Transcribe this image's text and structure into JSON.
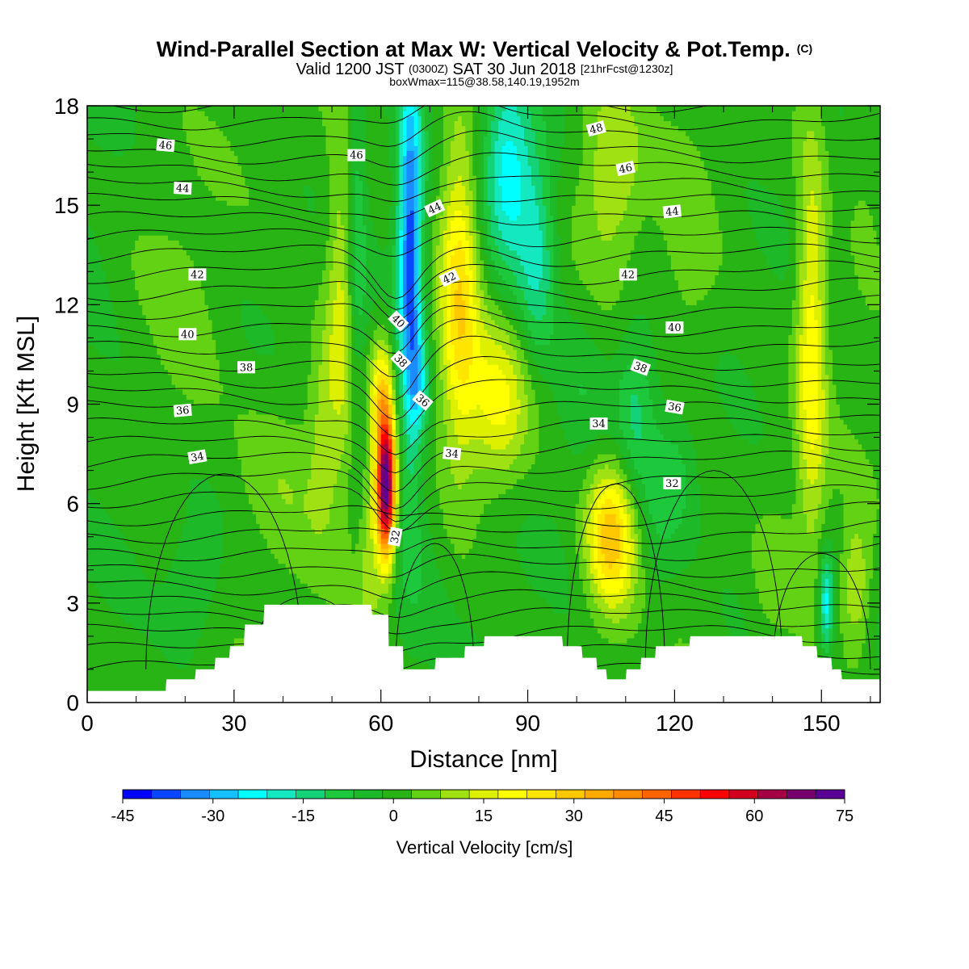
{
  "header": {
    "title_main": "Wind-Parallel Section at Max W: Vertical Velocity & Pot.Temp.",
    "title_mark": "(C)",
    "valid_line_a": "Valid 1200 JST",
    "valid_line_b": "(0300Z)",
    "valid_line_c": "SAT 30 Jun 2018",
    "valid_line_d": "[21hrFcst@1230z]",
    "box_line": "boxWmax=115@38.58,140.19,1952m"
  },
  "chart_data": {
    "type": "heatmap",
    "title": "Wind-Parallel Section at Max W: Vertical Velocity & Pot.Temp.",
    "xlabel": "Distance [nm]",
    "ylabel": "Height [Kft MSL]",
    "xlim": [
      0,
      162
    ],
    "ylim": [
      0,
      18
    ],
    "x_ticks": [
      0,
      30,
      60,
      90,
      120,
      150
    ],
    "x_tick_labels": [
      "0",
      "30",
      "60",
      "90",
      "120",
      "150"
    ],
    "y_ticks": [
      0,
      3,
      6,
      9,
      12,
      15,
      18
    ],
    "y_tick_labels": [
      "0",
      "3",
      "6",
      "9",
      "12",
      "15",
      "18"
    ],
    "colorbar": {
      "title": "Vertical Velocity [cm/s]",
      "min": -45,
      "max": 75,
      "step": 5,
      "tick_values": [
        -45,
        -30,
        -15,
        0,
        15,
        30,
        45,
        60,
        75
      ],
      "tick_labels": [
        "-45",
        "-30",
        "-15",
        "0",
        "15",
        "30",
        "45",
        "60",
        "75"
      ],
      "colors": [
        "#0000ff",
        "#0a46ff",
        "#1a8cff",
        "#14c0ff",
        "#00ffff",
        "#14e8c0",
        "#14d278",
        "#1ec83c",
        "#1eb928",
        "#28b414",
        "#64d214",
        "#a0e114",
        "#dcf000",
        "#ffff00",
        "#ffe600",
        "#ffc800",
        "#ffaa00",
        "#ff8c00",
        "#ff6400",
        "#ff3200",
        "#ff0000",
        "#d2001e",
        "#a50046",
        "#78006e",
        "#5a0096"
      ]
    },
    "w_features": [
      {
        "x": 0,
        "z": 13.5,
        "sx": 8,
        "sz": 4,
        "w": -4
      },
      {
        "x": 22,
        "z": 3.5,
        "sx": 6,
        "sz": 2,
        "w": -7
      },
      {
        "x": 20,
        "z": 11,
        "sx": 8,
        "sz": 4,
        "w": 5
      },
      {
        "x": 40,
        "z": 7,
        "sx": 10,
        "sz": 3,
        "w": 6
      },
      {
        "x": 52,
        "z": 12,
        "sx": 3,
        "sz": 5,
        "w": 16
      },
      {
        "x": 48,
        "z": 8.5,
        "sx": 3,
        "sz": 3,
        "w": 8
      },
      {
        "x": 55,
        "z": 14,
        "sx": 2,
        "sz": 6,
        "w": -12
      },
      {
        "x": 57.5,
        "z": 4,
        "sx": 2,
        "sz": 3,
        "w": 10
      },
      {
        "x": 61,
        "z": 6.5,
        "sx": 2,
        "sz": 2.2,
        "w": 78
      },
      {
        "x": 60,
        "z": 9.5,
        "sx": 2.2,
        "sz": 1.6,
        "w": 20
      },
      {
        "x": 66,
        "z": 13.5,
        "sx": 2.5,
        "sz": 6,
        "w": -40
      },
      {
        "x": 68,
        "z": 9.5,
        "sx": 2,
        "sz": 1.5,
        "w": -15
      },
      {
        "x": 76,
        "z": 12.5,
        "sx": 4,
        "sz": 5,
        "w": 26
      },
      {
        "x": 84,
        "z": 9,
        "sx": 6,
        "sz": 2.5,
        "w": 18
      },
      {
        "x": 66,
        "z": 5,
        "sx": 6,
        "sz": 3,
        "w": -5
      },
      {
        "x": 86,
        "z": 16,
        "sx": 5,
        "sz": 3,
        "w": -25
      },
      {
        "x": 92,
        "z": 13.5,
        "sx": 4,
        "sz": 3,
        "w": -18
      },
      {
        "x": 101,
        "z": 9.5,
        "sx": 5,
        "sz": 3,
        "w": -5
      },
      {
        "x": 107,
        "z": 5,
        "sx": 5,
        "sz": 2.2,
        "w": 32
      },
      {
        "x": 116,
        "z": 4.5,
        "sx": 4,
        "sz": 2.5,
        "w": -4
      },
      {
        "x": 112,
        "z": 9,
        "sx": 4,
        "sz": 2.5,
        "w": -12
      },
      {
        "x": 120,
        "z": 7,
        "sx": 5,
        "sz": 2,
        "w": -9
      },
      {
        "x": 107,
        "z": 16,
        "sx": 6,
        "sz": 3,
        "w": 12
      },
      {
        "x": 123,
        "z": 13,
        "sx": 6,
        "sz": 4,
        "w": 6
      },
      {
        "x": 134,
        "z": 4,
        "sx": 6,
        "sz": 3,
        "w": -3
      },
      {
        "x": 140,
        "z": 4,
        "sx": 5,
        "sz": 2,
        "w": 5
      },
      {
        "x": 148,
        "z": 11,
        "sx": 3,
        "sz": 6,
        "w": 22
      },
      {
        "x": 151,
        "z": 3,
        "sx": 1.5,
        "sz": 1.5,
        "w": -25
      },
      {
        "x": 157,
        "z": 3.5,
        "sx": 3,
        "sz": 2,
        "w": 14
      },
      {
        "x": 159,
        "z": 15,
        "sx": 4,
        "sz": 4,
        "w": 4
      }
    ],
    "terrain": [
      [
        0,
        0.35
      ],
      [
        16,
        0.35
      ],
      [
        16.2,
        0.7
      ],
      [
        22,
        0.7
      ],
      [
        22.2,
        1.0
      ],
      [
        26,
        1.0
      ],
      [
        26.2,
        1.35
      ],
      [
        29,
        1.35
      ],
      [
        29.2,
        1.7
      ],
      [
        32,
        1.7
      ],
      [
        32.2,
        2.35
      ],
      [
        36,
        2.35
      ],
      [
        36.2,
        2.95
      ],
      [
        58,
        2.95
      ],
      [
        58.2,
        2.65
      ],
      [
        61.5,
        2.65
      ],
      [
        61.6,
        1.7
      ],
      [
        64.5,
        1.7
      ],
      [
        64.6,
        1.0
      ],
      [
        71,
        1.0
      ],
      [
        71.2,
        1.35
      ],
      [
        77,
        1.35
      ],
      [
        77.2,
        1.7
      ],
      [
        81,
        1.7
      ],
      [
        81.2,
        2.0
      ],
      [
        97,
        2.0
      ],
      [
        97.2,
        1.7
      ],
      [
        101,
        1.7
      ],
      [
        101.2,
        1.35
      ],
      [
        104,
        1.35
      ],
      [
        104.2,
        1.0
      ],
      [
        106,
        1.0
      ],
      [
        106.2,
        0.7
      ],
      [
        110,
        0.7
      ],
      [
        110.2,
        1.0
      ],
      [
        113,
        1.0
      ],
      [
        113.2,
        1.35
      ],
      [
        116,
        1.35
      ],
      [
        116.2,
        1.7
      ],
      [
        123,
        1.7
      ],
      [
        123.2,
        2.0
      ],
      [
        146,
        2.0
      ],
      [
        146.2,
        1.7
      ],
      [
        149,
        1.7
      ],
      [
        149.2,
        1.35
      ],
      [
        152,
        1.35
      ],
      [
        152.2,
        1.0
      ],
      [
        154,
        1.0
      ],
      [
        154.2,
        0.7
      ],
      [
        162,
        0.7
      ]
    ],
    "theta_contour_labels": [
      {
        "text": "46",
        "x": 16,
        "z": 16.8,
        "angle": 5
      },
      {
        "text": "46",
        "x": 55,
        "z": 16.5,
        "angle": 0
      },
      {
        "text": "48",
        "x": 104,
        "z": 17.3,
        "angle": -15
      },
      {
        "text": "46",
        "x": 110,
        "z": 16.1,
        "angle": -12
      },
      {
        "text": "44",
        "x": 19.5,
        "z": 15.5,
        "angle": 3
      },
      {
        "text": "44",
        "x": 71,
        "z": 14.9,
        "angle": -25
      },
      {
        "text": "44",
        "x": 119.5,
        "z": 14.8,
        "angle": -6
      },
      {
        "text": "42",
        "x": 22.5,
        "z": 12.9,
        "angle": 0
      },
      {
        "text": "42",
        "x": 74,
        "z": 12.8,
        "angle": -25
      },
      {
        "text": "42",
        "x": 110.5,
        "z": 12.9,
        "angle": 0
      },
      {
        "text": "40",
        "x": 20.5,
        "z": 11.1,
        "angle": 0
      },
      {
        "text": "40",
        "x": 63.5,
        "z": 11.5,
        "angle": 45
      },
      {
        "text": "40",
        "x": 120,
        "z": 11.3,
        "angle": 0
      },
      {
        "text": "38",
        "x": 32.5,
        "z": 10.1,
        "angle": 0
      },
      {
        "text": "38",
        "x": 64,
        "z": 10.3,
        "angle": 45
      },
      {
        "text": "38",
        "x": 113,
        "z": 10.1,
        "angle": 20
      },
      {
        "text": "36",
        "x": 19.5,
        "z": 8.8,
        "angle": -5
      },
      {
        "text": "36",
        "x": 68.5,
        "z": 9.1,
        "angle": 40
      },
      {
        "text": "36",
        "x": 120,
        "z": 8.9,
        "angle": 10
      },
      {
        "text": "34",
        "x": 22.5,
        "z": 7.4,
        "angle": -10
      },
      {
        "text": "34",
        "x": 74.5,
        "z": 7.5,
        "angle": 5
      },
      {
        "text": "34",
        "x": 104.5,
        "z": 8.4,
        "angle": 0
      },
      {
        "text": "32",
        "x": 63,
        "z": 5,
        "angle": -80
      },
      {
        "text": "32",
        "x": 119.5,
        "z": 6.6,
        "angle": 0
      }
    ]
  }
}
